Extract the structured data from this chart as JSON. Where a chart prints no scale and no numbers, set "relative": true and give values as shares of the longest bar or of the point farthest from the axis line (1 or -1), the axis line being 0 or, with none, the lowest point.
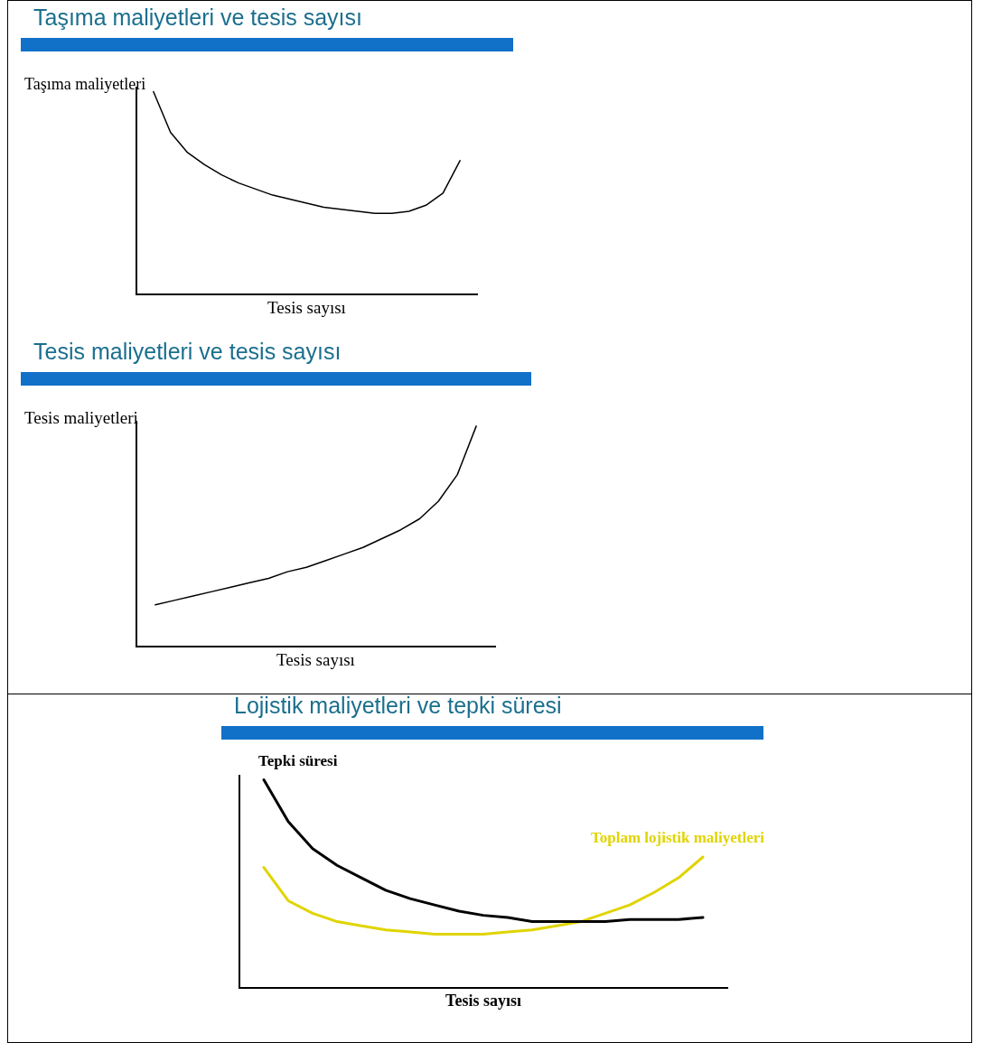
{
  "chart_data": [
    {
      "type": "line",
      "title": "Taşıma maliyetleri ve tesis sayısı",
      "ylabel": "Taşıma maliyetleri",
      "xlabel": "Tesis sayısı",
      "relative": true,
      "legend": false,
      "grid": false,
      "marker": "none",
      "categories": [
        null,
        null,
        null,
        null,
        null,
        null,
        null,
        null,
        null,
        null,
        null,
        null,
        null,
        null,
        null,
        null,
        null,
        null,
        null,
        null,
        null
      ],
      "series": [
        {
          "color": "#000000",
          "values": [
            null,
            1.0,
            0.8,
            0.7,
            0.64,
            0.59,
            0.55,
            0.52,
            0.49,
            0.47,
            0.45,
            0.43,
            0.42,
            0.41,
            0.4,
            0.4,
            0.41,
            0.44,
            0.5,
            0.66,
            null
          ]
        }
      ]
    },
    {
      "type": "line",
      "title": "Tesis maliyetleri ve tesis sayısı",
      "ylabel": "Tesis maliyetleri",
      "xlabel": "Tesis sayısı",
      "relative": true,
      "legend": false,
      "grid": false,
      "marker": "none",
      "categories": [
        null,
        null,
        null,
        null,
        null,
        null,
        null,
        null,
        null,
        null,
        null,
        null,
        null,
        null,
        null,
        null,
        null,
        null,
        null,
        null
      ],
      "series": [
        {
          "color": "#000000",
          "values": [
            null,
            0.19,
            0.21,
            0.23,
            0.25,
            0.27,
            0.29,
            0.31,
            0.34,
            0.36,
            0.39,
            0.42,
            0.45,
            0.49,
            0.53,
            0.58,
            0.66,
            0.78,
            1.0,
            null
          ]
        }
      ]
    },
    {
      "type": "line",
      "title": "Lojistik maliyetleri ve tepki süresi",
      "xlabel": "Tesis sayısı",
      "relative": true,
      "legend": false,
      "grid": false,
      "marker": "none",
      "categories": [
        null,
        null,
        null,
        null,
        null,
        null,
        null,
        null,
        null,
        null,
        null,
        null,
        null,
        null,
        null,
        null,
        null,
        null,
        null,
        null,
        null
      ],
      "series": [
        {
          "name": "Tepki süresi",
          "color": "#000000",
          "values": [
            null,
            1.0,
            0.8,
            0.67,
            0.59,
            0.53,
            0.47,
            0.43,
            0.4,
            0.37,
            0.35,
            0.34,
            0.32,
            0.32,
            0.32,
            0.32,
            0.33,
            0.33,
            0.33,
            0.34,
            null
          ]
        },
        {
          "name": "Toplam lojistik maliyetleri",
          "color": "#e0d400",
          "values": [
            null,
            0.58,
            0.42,
            0.36,
            0.32,
            0.3,
            0.28,
            0.27,
            0.26,
            0.26,
            0.26,
            0.27,
            0.28,
            0.3,
            0.32,
            0.36,
            0.4,
            0.46,
            0.53,
            0.63,
            null
          ]
        }
      ]
    }
  ]
}
